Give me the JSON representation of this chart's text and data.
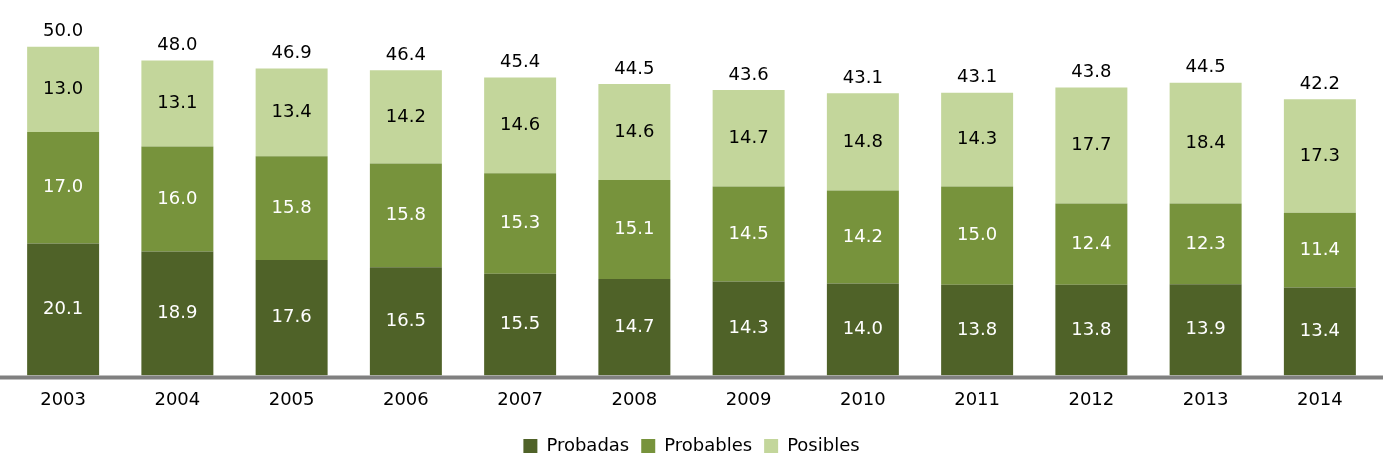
{
  "chart_data": {
    "type": "bar",
    "stacked": true,
    "categories": [
      "2003",
      "2004",
      "2005",
      "2006",
      "2007",
      "2008",
      "2009",
      "2010",
      "2011",
      "2012",
      "2013",
      "2014"
    ],
    "series": [
      {
        "name": "Probadas",
        "color": "#4f6228",
        "values": [
          20.1,
          18.9,
          17.6,
          16.5,
          15.5,
          14.7,
          14.3,
          14.0,
          13.8,
          13.8,
          13.9,
          13.4
        ],
        "value_labels": [
          "20.1",
          "18.9",
          "17.6",
          "16.5",
          "15.5",
          "14.7",
          "14.3",
          "14.0",
          "13.8",
          "13.8",
          "13.9",
          "13.4"
        ]
      },
      {
        "name": "Probables",
        "color": "#77933c",
        "values": [
          17.0,
          16.0,
          15.8,
          15.8,
          15.3,
          15.1,
          14.5,
          14.2,
          15.0,
          12.4,
          12.3,
          11.4
        ],
        "value_labels": [
          "17.0",
          "16.0",
          "15.8",
          "15.8",
          "15.3",
          "15.1",
          "14.5",
          "14.2",
          "15.0",
          "12.4",
          "12.3",
          "11.4"
        ]
      },
      {
        "name": "Posibles",
        "color": "#c3d69b",
        "values": [
          13.0,
          13.1,
          13.4,
          14.2,
          14.6,
          14.6,
          14.7,
          14.8,
          14.3,
          17.7,
          18.4,
          17.3
        ],
        "value_labels": [
          "13.0",
          "13.1",
          "13.4",
          "14.2",
          "14.6",
          "14.6",
          "14.7",
          "14.8",
          "14.3",
          "17.7",
          "18.4",
          "17.3"
        ]
      }
    ],
    "totals": [
      "50.0",
      "48.0",
      "46.9",
      "46.4",
      "45.4",
      "44.5",
      "43.6",
      "43.1",
      "43.1",
      "43.8",
      "44.5",
      "42.2"
    ],
    "tick_labels": "x",
    "grid": false,
    "legend": "bottom"
  }
}
